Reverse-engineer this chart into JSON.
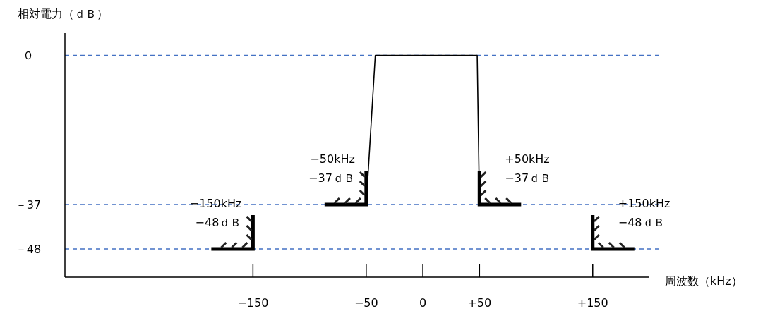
{
  "chart_data": {
    "type": "line",
    "xlabel": "周波数（kHz）",
    "ylabel": "相対電力（ｄＢ）",
    "x": [
      -50,
      -42,
      48,
      50
    ],
    "series": [
      {
        "color": "#000000",
        "values": [
          -37,
          0,
          0,
          -37
        ]
      }
    ],
    "xlim": [
      -316,
      200
    ],
    "ylim": [
      -55,
      5.5
    ],
    "xticks": [
      {
        "value": -150,
        "label": "−150"
      },
      {
        "value": -50,
        "label": "−50"
      },
      0,
      {
        "value": 50,
        "label": "+50"
      },
      {
        "value": 150,
        "label": "+150"
      }
    ],
    "yticks": [
      {
        "value": 0,
        "label": "０"
      },
      {
        "value": -37,
        "label": "－37"
      },
      {
        "value": -48,
        "label": "－48"
      }
    ],
    "ref_lines": [
      {
        "axis": "y",
        "value": 0,
        "color": "#4472c4",
        "line_style": "dashed"
      },
      {
        "axis": "y",
        "value": -37,
        "color": "#4472c4",
        "line_style": "dashed"
      },
      {
        "axis": "y",
        "value": -48,
        "color": "#4472c4",
        "line_style": "dashed"
      }
    ],
    "annotations": [
      {
        "text": "−150kHz\n−48ｄＢ",
        "x": -150,
        "y": -48
      },
      {
        "text": "−50kHz\n−37ｄＢ",
        "x": -50,
        "y": -37
      },
      {
        "text": "+50kHz\n−37ｄＢ",
        "x": 50,
        "y": -37
      },
      {
        "text": "+150kHz\n−48ｄＢ",
        "x": 150,
        "y": -48
      }
    ]
  }
}
